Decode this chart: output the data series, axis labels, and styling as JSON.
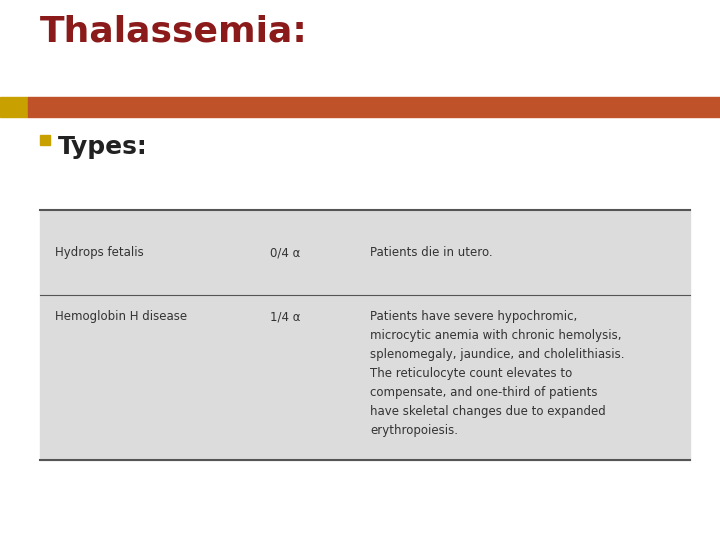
{
  "title": "Thalassemia:",
  "title_color": "#8B1A1A",
  "title_fontsize": 26,
  "title_font": "DejaVu Sans",
  "bullet_text": "Types:",
  "bullet_fontsize": 18,
  "bullet_color": "#222222",
  "bullet_square_color": "#C8A000",
  "divider_bar_color": "#C0522A",
  "divider_bar_gold": "#C8A000",
  "bg_color": "#FFFFFF",
  "table_bg": "#DCDCDC",
  "table_line_color": "#555555",
  "rows": [
    {
      "name": "Hydrops fetalis",
      "gene": "0/4 α",
      "desc": "Patients die in utero."
    },
    {
      "name": "Hemoglobin H disease",
      "gene": "1/4 α",
      "desc": "Patients have severe hypochromic,\nmicrocytic anemia with chronic hemolysis,\nsplenomegaly, jaundice, and cholelithiasis.\nThe reticulocyte count elevates to\ncompensate, and one-third of patients\nhave skeletal changes due to expanded\nerythropoiesis."
    }
  ],
  "font_color_table": "#333333",
  "table_fontsize": 8.5
}
